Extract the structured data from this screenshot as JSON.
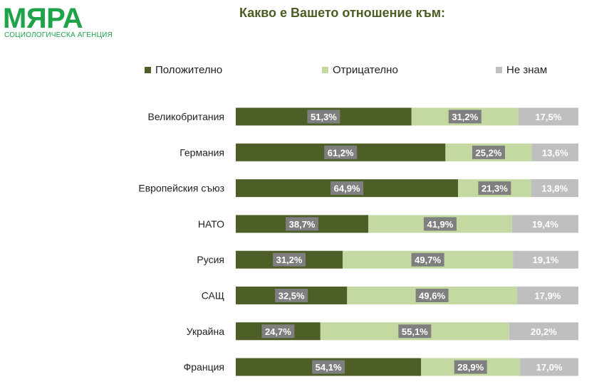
{
  "header": {
    "logo_text": "МЯРА",
    "logo_subtitle": "СОЦИОЛОГИЧЕСКА АГЕНЦИЯ",
    "title": "Какво е Вашето отношение към:"
  },
  "colors": {
    "brand": "#1fa34a",
    "positive": "#4d5f27",
    "negative": "#c4d9a2",
    "unknown": "#bfbfbf",
    "label_box": "#7f7f7f"
  },
  "chart_data": {
    "type": "bar",
    "orientation": "horizontal",
    "stacked": true,
    "percent": true,
    "title": "Какво е Вашето отношение към:",
    "legend_position": "top",
    "categories": [
      "Великобритания",
      "Германия",
      "Европейския съюз",
      "НАТО",
      "Русия",
      "САЩ",
      "Украйна",
      "Франция"
    ],
    "series": [
      {
        "name": "Положително",
        "color": "#4d5f27",
        "values": [
          51.3,
          61.2,
          64.9,
          38.7,
          31.2,
          32.5,
          24.7,
          54.1
        ],
        "labels": [
          "51,3%",
          "61,2%",
          "64,9%",
          "38,7%",
          "31,2%",
          "32,5%",
          "24,7%",
          "54,1%"
        ]
      },
      {
        "name": "Отрицателно",
        "color": "#c4d9a2",
        "values": [
          31.2,
          25.2,
          21.3,
          41.9,
          49.7,
          49.6,
          55.1,
          28.9
        ],
        "labels": [
          "31,2%",
          "25,2%",
          "21,3%",
          "41,9%",
          "49,7%",
          "49,6%",
          "55,1%",
          "28,9%"
        ]
      },
      {
        "name": "Не знам",
        "color": "#bfbfbf",
        "values": [
          17.5,
          13.6,
          13.8,
          19.4,
          19.1,
          17.9,
          20.2,
          17.0
        ],
        "labels": [
          "17,5%",
          "13,6%",
          "13,8%",
          "19,4%",
          "19,1%",
          "17,9%",
          "20,2%",
          "17,0%"
        ]
      }
    ],
    "xlim": [
      0,
      100
    ],
    "grid": false
  }
}
